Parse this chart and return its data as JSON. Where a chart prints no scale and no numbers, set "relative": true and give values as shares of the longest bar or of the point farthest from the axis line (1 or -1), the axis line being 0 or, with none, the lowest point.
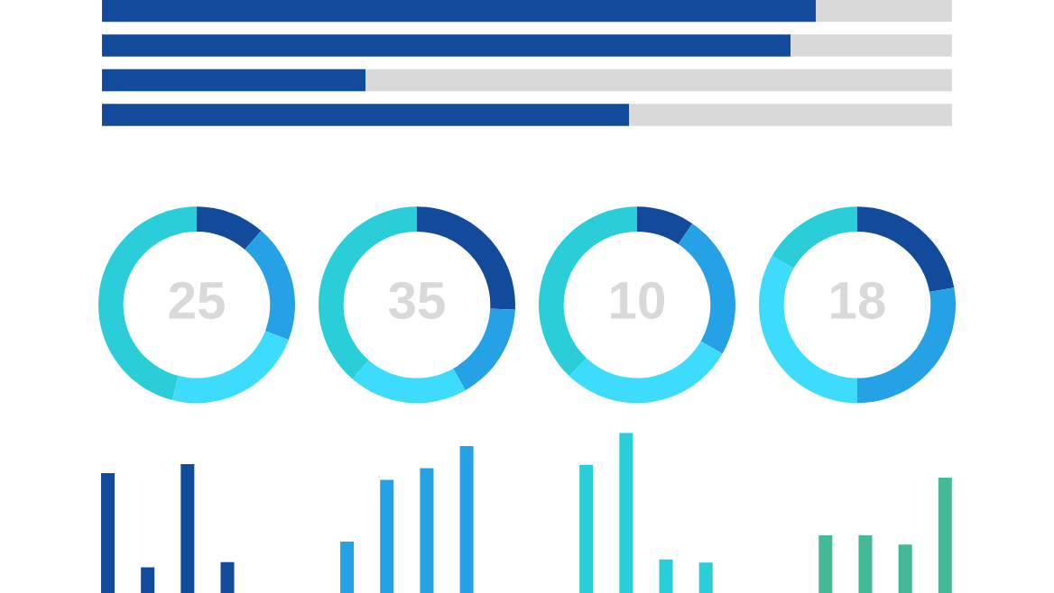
{
  "chart_data": [
    {
      "type": "bar",
      "orientation": "horizontal",
      "stacked": true,
      "relative": true,
      "categories": [
        null,
        null,
        null,
        null
      ],
      "series": [
        {
          "color": "#134b9c",
          "values": [
            0.84,
            0.81,
            0.31,
            0.62
          ]
        },
        {
          "color": "#d9d9d9",
          "values": [
            0.16,
            0.19,
            0.69,
            0.38
          ]
        }
      ]
    },
    {
      "type": "donut",
      "categories": [
        null,
        null,
        null,
        null
      ],
      "values": [
        11.4,
        19.4,
        23.2,
        46.0
      ],
      "colors": [
        "#134b9c",
        "#25a1e6",
        "#3edcfc",
        "#29ced8"
      ],
      "annotations": [
        "25"
      ]
    },
    {
      "type": "donut",
      "categories": [
        null,
        null,
        null,
        null
      ],
      "values": [
        25.8,
        16.0,
        19.6,
        38.6
      ],
      "colors": [
        "#134b9c",
        "#25a1e6",
        "#3edcfc",
        "#29ced8"
      ],
      "annotations": [
        "35"
      ]
    },
    {
      "type": "donut",
      "categories": [
        null,
        null,
        null,
        null
      ],
      "values": [
        9.5,
        23.8,
        28.8,
        37.9
      ],
      "colors": [
        "#134b9c",
        "#25a1e6",
        "#3edcfc",
        "#29ced8"
      ],
      "annotations": [
        "10"
      ]
    },
    {
      "type": "donut",
      "categories": [
        null,
        null,
        null,
        null
      ],
      "values": [
        22.2,
        27.8,
        33.3,
        16.7
      ],
      "colors": [
        "#134b9c",
        "#25a1e6",
        "#3edcfc",
        "#29ced8"
      ],
      "annotations": [
        "18"
      ]
    },
    {
      "type": "bar",
      "relative": true,
      "categories": [
        null,
        null,
        null,
        null
      ],
      "values": [
        0.93,
        0.2,
        1.0,
        0.24
      ],
      "color": "#134b9c"
    },
    {
      "type": "bar",
      "relative": true,
      "categories": [
        null,
        null,
        null,
        null
      ],
      "values": [
        0.35,
        0.77,
        0.85,
        1.0
      ],
      "color": "#25a1e6"
    },
    {
      "type": "bar",
      "relative": true,
      "categories": [
        null,
        null,
        null,
        null
      ],
      "values": [
        0.8,
        1.0,
        0.21,
        0.19
      ],
      "color": "#29ced8"
    },
    {
      "type": "bar",
      "relative": true,
      "categories": [
        null,
        null,
        null,
        null
      ],
      "values": [
        0.5,
        0.5,
        0.42,
        1.0
      ],
      "color": "#43b997"
    }
  ]
}
